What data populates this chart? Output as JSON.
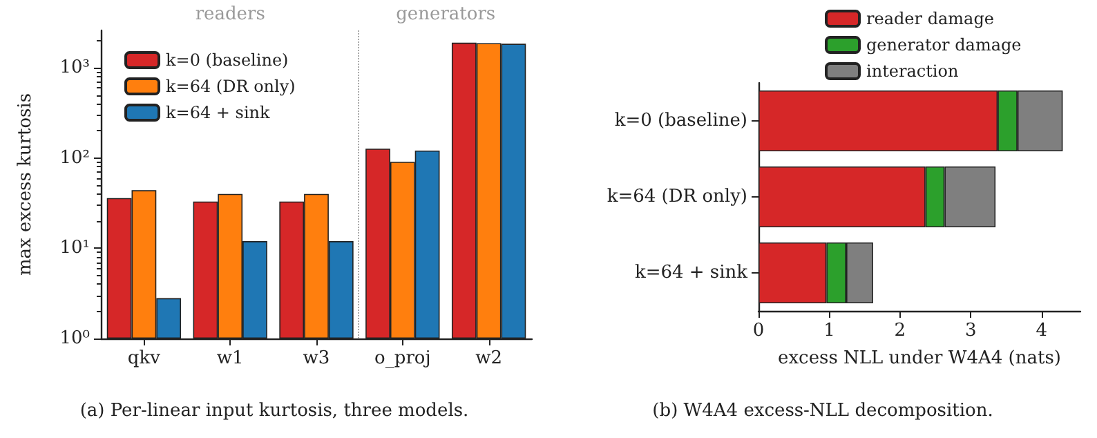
{
  "chart_data": [
    {
      "type": "bar",
      "title": "(a) Per-linear input kurtosis, three models.",
      "ylabel": "max excess kurtosis",
      "categories": [
        "qkv",
        "w1",
        "w3",
        "o_proj",
        "w2"
      ],
      "series": [
        {
          "name": "k=0 (baseline)",
          "color": "#d62728",
          "values": [
            36,
            33,
            33,
            127,
            1900
          ]
        },
        {
          "name": "k=64 (DR only)",
          "color": "#ff7f0e",
          "values": [
            44,
            40,
            40,
            91,
            1880
          ]
        },
        {
          "name": "k=64 + sink",
          "color": "#1f77b4",
          "values": [
            2.8,
            12,
            12,
            121,
            1850
          ]
        }
      ],
      "log": true,
      "ylim": [
        1,
        2600
      ],
      "yticks": [
        {
          "value": 1,
          "label": "10⁰"
        },
        {
          "value": 10,
          "label": "10¹"
        },
        {
          "value": 100,
          "label": "10²"
        },
        {
          "value": 1000,
          "label": "10³"
        }
      ],
      "legend": "top left",
      "grid": false,
      "annotations": [
        "readers",
        "generators"
      ]
    },
    {
      "type": "bar",
      "orientation": "horizontal",
      "stacked": true,
      "title": "(b) W4A4 excess-NLL decomposition.",
      "xlabel": "excess NLL under W4A4 (nats)",
      "categories": [
        "k=0 (baseline)",
        "k=64 (DR only)",
        "k=64 + sink"
      ],
      "series": [
        {
          "name": "reader damage",
          "color": "#d62728",
          "values": [
            3.38,
            2.36,
            0.96
          ]
        },
        {
          "name": "generator damage",
          "color": "#2ca02c",
          "values": [
            0.28,
            0.27,
            0.28
          ]
        },
        {
          "name": "interaction",
          "color": "#7f7f7f",
          "values": [
            0.64,
            0.72,
            0.38
          ]
        }
      ],
      "xlim": [
        0,
        4.55
      ],
      "xticks": [
        0,
        1,
        2,
        3,
        4
      ],
      "legend": "top right",
      "grid": false
    }
  ]
}
